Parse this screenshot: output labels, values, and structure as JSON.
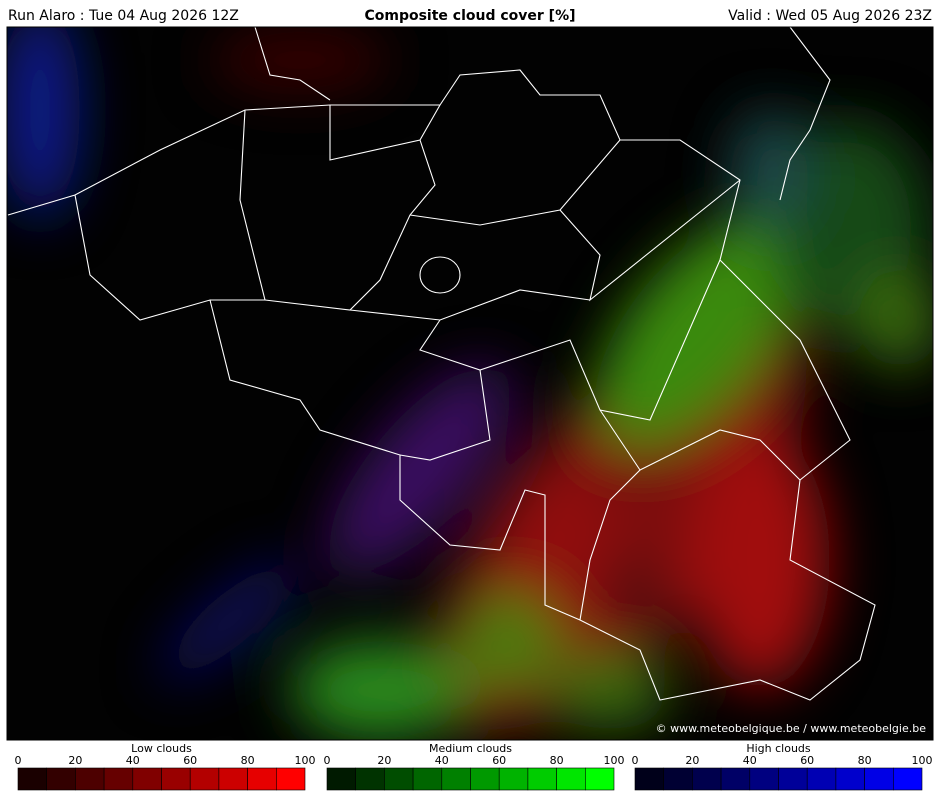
{
  "header": {
    "left": "Run Alaro : Tue 04 Aug 2026 12Z",
    "title": "Composite cloud cover [%]",
    "right": "Valid : Wed 05 Aug 2026 23Z"
  },
  "credit": "© www.meteobelgique.be / www.meteobelgie.be",
  "legends": [
    {
      "title": "Low clouds",
      "ticks": [
        0,
        20,
        40,
        60,
        80,
        100
      ],
      "colors": [
        "#1a0000",
        "#330000",
        "#4d0000",
        "#660000",
        "#800000",
        "#990000",
        "#b30000",
        "#cc0000",
        "#e60000",
        "#ff0000"
      ]
    },
    {
      "title": "Medium clouds",
      "ticks": [
        0,
        20,
        40,
        60,
        80,
        100
      ],
      "colors": [
        "#001a00",
        "#003300",
        "#004d00",
        "#006600",
        "#008000",
        "#009900",
        "#00b300",
        "#00cc00",
        "#00e600",
        "#00ff00"
      ]
    },
    {
      "title": "High clouds",
      "ticks": [
        0,
        20,
        40,
        60,
        80,
        100
      ],
      "colors": [
        "#00001a",
        "#000033",
        "#00004d",
        "#000066",
        "#000080",
        "#000099",
        "#0000b3",
        "#0000cc",
        "#0000e6",
        "#0000ff"
      ]
    }
  ]
}
